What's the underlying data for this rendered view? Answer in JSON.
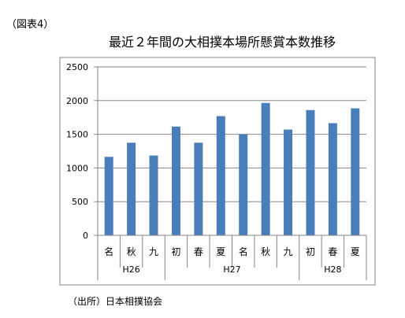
{
  "figure_label": "（図表4）",
  "source_note": "（出所）日本相撲協会",
  "chart_data": {
    "type": "bar",
    "title": "最近２年間の大相撲本場所懸賞本数推移",
    "categories": [
      "名",
      "秋",
      "九",
      "初",
      "春",
      "夏",
      "名",
      "秋",
      "九",
      "初",
      "春",
      "夏"
    ],
    "groups": [
      {
        "label": "H26",
        "count": 3
      },
      {
        "label": "H27",
        "count": 6
      },
      {
        "label": "H28",
        "count": 3
      }
    ],
    "values": [
      1165,
      1375,
      1185,
      1615,
      1375,
      1770,
      1500,
      1965,
      1570,
      1860,
      1665,
      1885
    ],
    "ylim": [
      0,
      2500
    ],
    "yticks": [
      0,
      500,
      1000,
      1500,
      2000,
      2500
    ],
    "grid": true,
    "colors": {
      "bar": "#4a7ebb",
      "grid": "#868686",
      "axis": "#868686"
    }
  }
}
